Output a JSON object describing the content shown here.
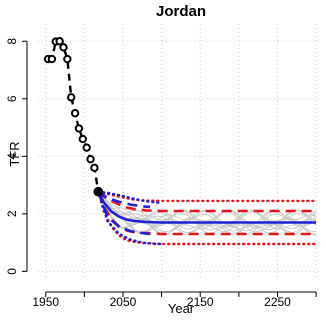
{
  "chart_data": {
    "type": "line",
    "title": "Jordan",
    "xlabel": "Year",
    "ylabel": "TFR",
    "xlim": [
      1940,
      2305
    ],
    "ylim": [
      -0.3,
      8.6
    ],
    "xticks": [
      1950,
      2050,
      2150,
      2250
    ],
    "xtick_labels": [
      "1950",
      "2050",
      "2150",
      "2250"
    ],
    "xticks_minor": [
      2000,
      2100,
      2200,
      2300
    ],
    "yticks": [
      0,
      2,
      4,
      6,
      8
    ],
    "ytick_labels": [
      "0",
      "2",
      "4",
      "6",
      "8"
    ],
    "grid": true,
    "colors": {
      "observed": "#000000",
      "median": "#1f1fd6",
      "interval80": "#e8141b",
      "interval95": "#e8141b",
      "blue_band": "#1f1fd6",
      "trajectories": "#c8c8c8",
      "grid": "#cfcfcf"
    },
    "observed": {
      "x": [
        1953,
        1958,
        1963,
        1968,
        1973,
        1978,
        1983,
        1988,
        1993,
        1998,
        2003,
        2008,
        2013,
        2018
      ],
      "y": [
        7.38,
        7.38,
        7.99,
        8.0,
        7.79,
        7.38,
        6.05,
        5.5,
        4.97,
        4.6,
        4.3,
        3.9,
        3.6,
        2.77
      ]
    },
    "series": [
      {
        "x": [
          2018,
          2025,
          2035,
          2045,
          2055,
          2065,
          2080,
          2100,
          2150,
          2200,
          2250,
          2300
        ],
        "values": [
          2.77,
          2.4,
          2.08,
          1.9,
          1.8,
          1.75,
          1.72,
          1.7,
          1.7,
          1.7,
          1.7,
          1.7
        ]
      },
      {
        "x": [
          2018,
          2025,
          2035,
          2045,
          2055,
          2065,
          2080,
          2100,
          2150,
          2200,
          2250,
          2300
        ],
        "values": [
          2.77,
          2.6,
          2.45,
          2.32,
          2.22,
          2.16,
          2.12,
          2.1,
          2.1,
          2.1,
          2.1,
          2.1
        ]
      },
      {
        "x": [
          2018,
          2025,
          2035,
          2045,
          2055,
          2065,
          2080,
          2100,
          2150,
          2200,
          2250,
          2300
        ],
        "values": [
          2.77,
          2.25,
          1.82,
          1.56,
          1.42,
          1.36,
          1.33,
          1.3,
          1.3,
          1.3,
          1.3,
          1.3
        ]
      },
      {
        "x": [
          2018,
          2025,
          2035,
          2045,
          2055,
          2065,
          2080,
          2100,
          2150,
          2200,
          2250,
          2300
        ],
        "values": [
          2.77,
          2.72,
          2.66,
          2.6,
          2.54,
          2.49,
          2.46,
          2.45,
          2.45,
          2.45,
          2.45,
          2.45
        ]
      },
      {
        "x": [
          2018,
          2025,
          2035,
          2045,
          2055,
          2065,
          2080,
          2100,
          2150,
          2200,
          2250,
          2300
        ],
        "values": [
          2.77,
          2.1,
          1.55,
          1.25,
          1.08,
          1.02,
          0.98,
          0.95,
          0.95,
          0.95,
          0.95,
          0.95
        ]
      },
      {
        "x": [
          2018,
          2030,
          2045,
          2060,
          2075,
          2085
        ],
        "values": [
          2.77,
          2.55,
          2.42,
          2.32,
          2.26,
          2.24
        ]
      },
      {
        "x": [
          2018,
          2030,
          2045,
          2060,
          2075,
          2085
        ],
        "values": [
          2.77,
          1.9,
          1.55,
          1.4,
          1.33,
          1.3
        ]
      },
      {
        "x": [
          2018,
          2030,
          2045,
          2060,
          2075,
          2090,
          2100
        ],
        "values": [
          2.77,
          2.73,
          2.65,
          2.55,
          2.46,
          2.4,
          2.38
        ]
      },
      {
        "x": [
          2018,
          2030,
          2045,
          2060,
          2075,
          2090,
          2100
        ],
        "values": [
          2.77,
          1.75,
          1.3,
          1.1,
          1.0,
          0.96,
          0.95
        ]
      }
    ]
  }
}
